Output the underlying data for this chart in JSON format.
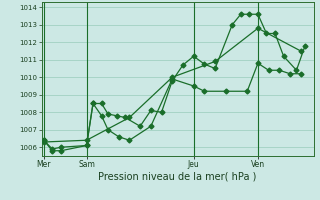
{
  "xlabel": "Pression niveau de la mer( hPa )",
  "bg_color": "#cce8e4",
  "grid_color": "#99ccbb",
  "line_color": "#1a6e2a",
  "ylim": [
    1005.5,
    1014.3
  ],
  "xlim": [
    -0.1,
    12.6
  ],
  "day_labels": [
    "Mer",
    "Sam",
    "Jeu",
    "Ven"
  ],
  "day_positions": [
    0.0,
    2.0,
    7.0,
    10.0
  ],
  "series1_x": [
    0,
    0.4,
    0.8,
    2.0,
    2.3,
    2.7,
    3.0,
    3.4,
    3.8,
    4.5,
    5.0,
    5.5,
    6.0,
    6.5,
    7.0,
    7.5,
    8.0,
    8.8,
    9.2,
    9.6,
    10.0,
    10.4,
    10.8,
    11.2,
    11.8,
    12.2
  ],
  "series1_y": [
    1006.4,
    1005.8,
    1005.8,
    1006.1,
    1008.5,
    1008.5,
    1007.9,
    1007.8,
    1007.7,
    1007.2,
    1008.1,
    1008.0,
    1009.8,
    1010.7,
    1011.2,
    1010.75,
    1010.5,
    1013.0,
    1013.6,
    1013.6,
    1013.6,
    1012.5,
    1012.5,
    1011.2,
    1010.4,
    1011.8
  ],
  "series2_x": [
    0,
    0.4,
    0.8,
    2.0,
    2.3,
    2.7,
    3.0,
    3.5,
    4.0,
    5.0,
    6.0,
    7.0,
    7.5,
    8.5,
    9.5,
    10.0,
    10.5,
    11.0,
    11.5,
    12.0
  ],
  "series2_y": [
    1006.4,
    1005.9,
    1006.0,
    1006.1,
    1008.5,
    1007.8,
    1007.0,
    1006.6,
    1006.4,
    1007.2,
    1009.9,
    1009.5,
    1009.2,
    1009.2,
    1009.2,
    1010.8,
    1010.4,
    1010.4,
    1010.2,
    1010.2
  ],
  "series3_x": [
    0,
    2.0,
    4.0,
    6.0,
    8.0,
    10.0,
    12.0
  ],
  "series3_y": [
    1006.3,
    1006.4,
    1007.7,
    1010.0,
    1010.9,
    1012.8,
    1011.5
  ],
  "marker": "D",
  "marker_size": 2.5,
  "line_width": 0.9
}
